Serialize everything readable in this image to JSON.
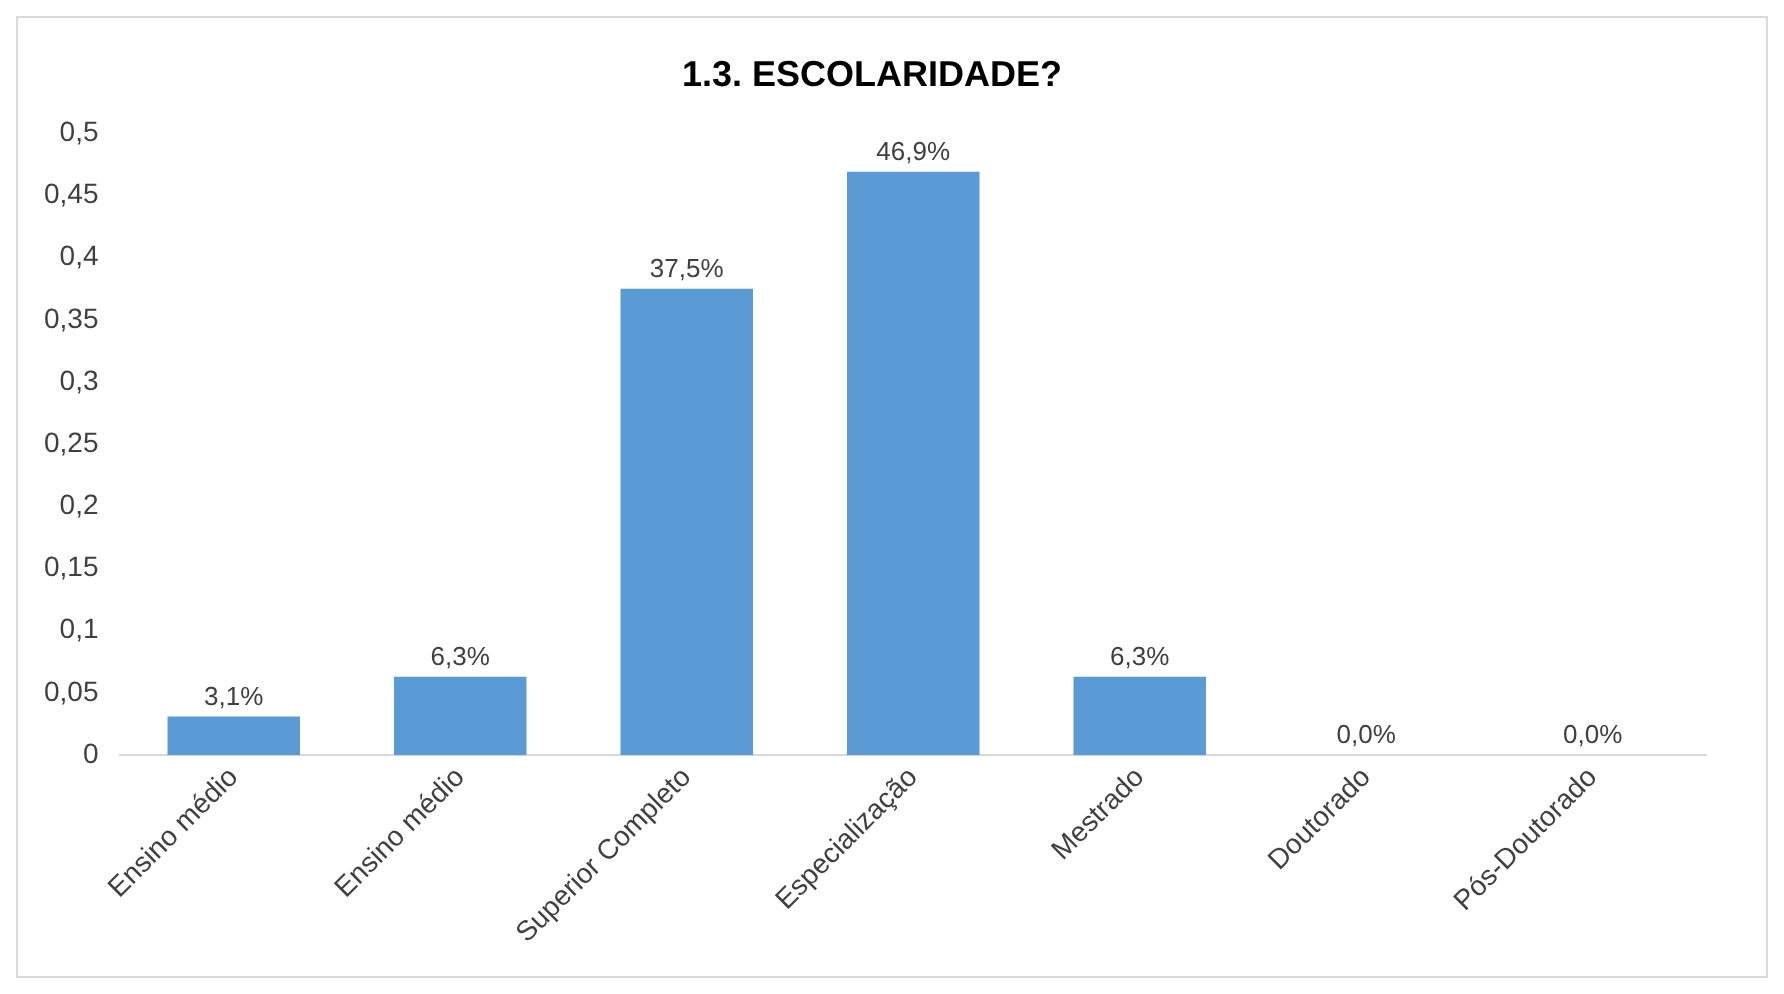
{
  "chart_data": {
    "type": "bar",
    "title": "1.3. ESCOLARIDADE?",
    "categories": [
      "Ensino médio",
      "Ensino médio",
      "Superior Completo",
      "Especialização",
      "Mestrado",
      "Doutorado",
      "Pós-Doutorado"
    ],
    "values": [
      0.031,
      0.063,
      0.375,
      0.469,
      0.063,
      0,
      0
    ],
    "value_labels": [
      "3,1%",
      "6,3%",
      "37,5%",
      "46,9%",
      "6,3%",
      "0,0%",
      "0,0%"
    ],
    "color": "#5b9bd5",
    "ylim": [
      0,
      0.5
    ],
    "yticks": [
      0,
      {
        "value": 0.05,
        "label": "0,05"
      },
      {
        "value": 0.1,
        "label": "0,1"
      },
      {
        "value": 0.15,
        "label": "0,15"
      },
      {
        "value": 0.2,
        "label": "0,2"
      },
      {
        "value": 0.25,
        "label": "0,25"
      },
      {
        "value": 0.3,
        "label": "0,3"
      },
      {
        "value": 0.35,
        "label": "0,35"
      },
      {
        "value": 0.4,
        "label": "0,4"
      },
      {
        "value": 0.45,
        "label": "0,45"
      },
      {
        "value": 0.5,
        "label": "0,5"
      }
    ],
    "grid": false,
    "legend": false
  }
}
